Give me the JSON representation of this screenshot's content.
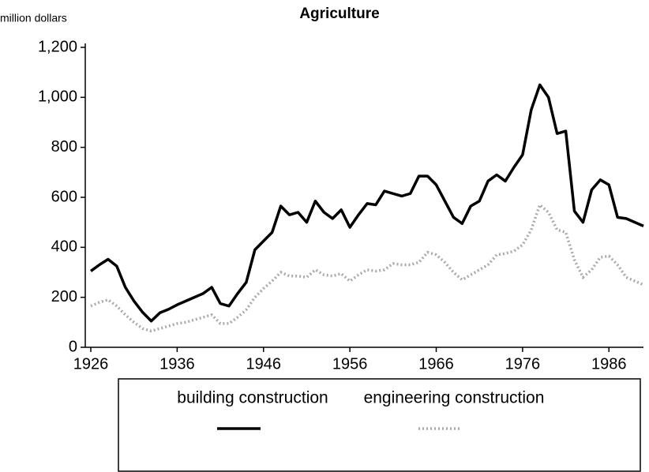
{
  "chart_data": {
    "type": "line",
    "title": "Agriculture",
    "y_label": "million dollars",
    "xlim": [
      1926,
      1990
    ],
    "xticks": [
      1926,
      1936,
      1946,
      1956,
      1966,
      1976,
      1986
    ],
    "ylim": [
      0,
      1200
    ],
    "yticks": [
      0,
      200,
      400,
      600,
      800,
      {
        "value": 1000,
        "label": "1,000"
      },
      {
        "value": 1200,
        "label": "1,200"
      }
    ],
    "x": [
      1926,
      1927,
      1928,
      1929,
      1930,
      1931,
      1932,
      1933,
      1934,
      1935,
      1936,
      1937,
      1938,
      1939,
      1940,
      1941,
      1942,
      1943,
      1944,
      1945,
      1946,
      1947,
      1948,
      1949,
      1950,
      1951,
      1952,
      1953,
      1954,
      1955,
      1956,
      1957,
      1958,
      1959,
      1960,
      1961,
      1962,
      1963,
      1964,
      1965,
      1966,
      1967,
      1968,
      1969,
      1970,
      1971,
      1972,
      1973,
      1974,
      1975,
      1976,
      1977,
      1978,
      1979,
      1980,
      1981,
      1982,
      1983,
      1984,
      1985,
      1986,
      1987,
      1988,
      1989,
      1990
    ],
    "series": [
      {
        "name": "building construction",
        "color": "#000000",
        "line_style": "solid",
        "values": [
          305,
          330,
          352,
          325,
          240,
          185,
          140,
          105,
          138,
          152,
          170,
          185,
          200,
          215,
          240,
          175,
          165,
          215,
          260,
          390,
          425,
          460,
          565,
          530,
          540,
          500,
          585,
          540,
          515,
          550,
          480,
          530,
          575,
          570,
          625,
          615,
          605,
          615,
          685,
          685,
          650,
          585,
          520,
          495,
          565,
          585,
          665,
          690,
          665,
          720,
          770,
          950,
          1050,
          1000,
          855,
          865,
          545,
          500,
          630,
          670,
          650,
          520,
          515,
          500,
          485
        ]
      },
      {
        "name": "engineering construction",
        "color": "#aaaaaa",
        "line_style": "dotted",
        "values": [
          165,
          180,
          190,
          165,
          130,
          100,
          75,
          65,
          75,
          85,
          95,
          100,
          110,
          120,
          130,
          95,
          95,
          120,
          150,
          200,
          235,
          265,
          300,
          285,
          285,
          280,
          310,
          290,
          285,
          295,
          265,
          290,
          310,
          305,
          310,
          335,
          330,
          330,
          340,
          380,
          370,
          340,
          300,
          270,
          290,
          310,
          330,
          370,
          375,
          385,
          410,
          470,
          570,
          540,
          470,
          460,
          350,
          280,
          310,
          360,
          365,
          330,
          280,
          265,
          250
        ]
      }
    ]
  }
}
